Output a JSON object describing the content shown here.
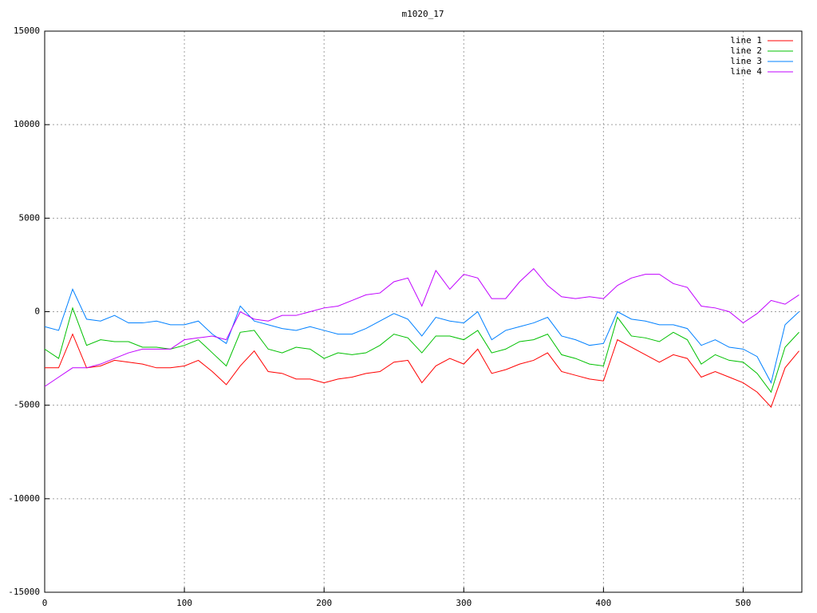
{
  "chart_data": {
    "type": "line",
    "title": "m1020_17",
    "x": [
      0,
      10,
      20,
      30,
      40,
      50,
      60,
      70,
      80,
      90,
      100,
      110,
      120,
      130,
      140,
      150,
      160,
      170,
      180,
      190,
      200,
      210,
      220,
      230,
      240,
      250,
      260,
      270,
      280,
      290,
      300,
      310,
      320,
      330,
      340,
      350,
      360,
      370,
      380,
      390,
      400,
      410,
      420,
      430,
      440,
      450,
      460,
      470,
      480,
      490,
      500,
      510,
      520,
      530,
      540
    ],
    "series": [
      {
        "name": "line 1",
        "color": "#ff0000",
        "values": [
          -3000,
          -3000,
          -1200,
          -3000,
          -2900,
          -2600,
          -2700,
          -2800,
          -3000,
          -3000,
          -2900,
          -2600,
          -3200,
          -3900,
          -2900,
          -2100,
          -3200,
          -3300,
          -3600,
          -3600,
          -3800,
          -3600,
          -3500,
          -3300,
          -3200,
          -2700,
          -2600,
          -3800,
          -2900,
          -2500,
          -2800,
          -2000,
          -3300,
          -3100,
          -2800,
          -2600,
          -2200,
          -3200,
          -3400,
          -3600,
          -3700,
          -1500,
          -1900,
          -2300,
          -2700,
          -2300,
          -2500,
          -3500,
          -3200,
          -3500,
          -3800,
          -4300,
          -5100,
          -3000,
          -2100
        ]
      },
      {
        "name": "line 2",
        "color": "#00c000",
        "values": [
          -2000,
          -2500,
          200,
          -1800,
          -1500,
          -1600,
          -1600,
          -1900,
          -1900,
          -2000,
          -1800,
          -1500,
          -2200,
          -2900,
          -1100,
          -1000,
          -2000,
          -2200,
          -1900,
          -2000,
          -2500,
          -2200,
          -2300,
          -2200,
          -1800,
          -1200,
          -1400,
          -2200,
          -1300,
          -1300,
          -1500,
          -1000,
          -2200,
          -2000,
          -1600,
          -1500,
          -1200,
          -2300,
          -2500,
          -2800,
          -2900,
          -300,
          -1300,
          -1400,
          -1600,
          -1100,
          -1500,
          -2800,
          -2300,
          -2600,
          -2700,
          -3300,
          -4300,
          -1900,
          -1100
        ]
      },
      {
        "name": "line 3",
        "color": "#0080ff",
        "values": [
          -800,
          -1000,
          1200,
          -400,
          -500,
          -200,
          -600,
          -600,
          -500,
          -700,
          -700,
          -500,
          -1200,
          -1700,
          300,
          -500,
          -700,
          -900,
          -1000,
          -800,
          -1000,
          -1200,
          -1200,
          -900,
          -500,
          -100,
          -400,
          -1300,
          -300,
          -500,
          -600,
          0,
          -1500,
          -1000,
          -800,
          -600,
          -300,
          -1300,
          -1500,
          -1800,
          -1700,
          0,
          -400,
          -500,
          -700,
          -700,
          -900,
          -1800,
          -1500,
          -1900,
          -2000,
          -2400,
          -3800,
          -700,
          0
        ]
      },
      {
        "name": "line 4",
        "color": "#c000ff",
        "values": [
          -4000,
          -3500,
          -3000,
          -3000,
          -2800,
          -2500,
          -2200,
          -2000,
          -2000,
          -2000,
          -1500,
          -1400,
          -1300,
          -1500,
          0,
          -400,
          -500,
          -200,
          -200,
          0,
          200,
          300,
          600,
          900,
          1000,
          1600,
          1800,
          300,
          2200,
          1200,
          2000,
          1800,
          700,
          700,
          1600,
          2300,
          1400,
          800,
          700,
          800,
          700,
          1400,
          1800,
          2000,
          2000,
          1500,
          1300,
          300,
          200,
          0,
          -600,
          -100,
          600,
          400,
          900
        ]
      }
    ],
    "xlim": [
      0,
      542
    ],
    "xticks": [
      0,
      100,
      200,
      300,
      400,
      500
    ],
    "ylim": [
      -15000,
      15000
    ],
    "yticks": [
      -15000,
      -10000,
      -5000,
      0,
      5000,
      10000,
      15000
    ],
    "grid": true,
    "legend": "top-right"
  }
}
